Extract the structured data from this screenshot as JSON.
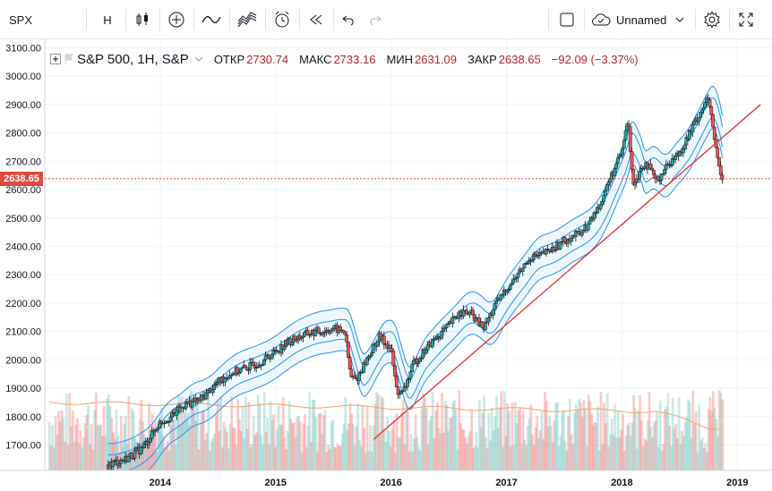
{
  "toolbar": {
    "symbol": "SPX",
    "interval": "H",
    "layout_name": "Unnamed",
    "icons": [
      "candles-icon",
      "add-indicator-icon",
      "indicators-icon",
      "compare-icon",
      "alert-icon",
      "replay-icon",
      "undo-icon",
      "redo-icon",
      "fullscreen-square-icon",
      "cloud-icon",
      "chevron-down-icon",
      "settings-gear-icon",
      "expand-icon"
    ]
  },
  "legend": {
    "title": "S&P 500, 1H, S&P",
    "open_label": "ОТКР",
    "open": "2730.74",
    "high_label": "МАКС",
    "high": "2733.16",
    "low_label": "МИН",
    "low": "2631.09",
    "close_label": "ЗАКР",
    "close": "2638.65",
    "change": "−92.09 (−3.37%)"
  },
  "last_price_tag": "2638.65",
  "colors": {
    "up": "#26a69a",
    "down": "#ef5350",
    "trend": "#e53935",
    "band": "#2196f3",
    "ma": "#f4a460",
    "price_line": "#e04a3f"
  },
  "chart_data": {
    "type": "candlestick",
    "y_axis_ticks": [
      "3100.00",
      "3000.00",
      "2900.00",
      "2800.00",
      "2700.00",
      "2600.00",
      "2500.00",
      "2400.00",
      "2300.00",
      "2200.00",
      "2100.00",
      "2000.00",
      "1900.00",
      "1800.00",
      "1700.00"
    ],
    "x_axis_ticks": [
      "2014",
      "2015",
      "2016",
      "2017",
      "2018",
      "2019"
    ],
    "ylim": [
      1610,
      3130
    ],
    "xlim": [
      2013.0,
      2019.3
    ],
    "close_path": [
      [
        2013.55,
        1630
      ],
      [
        2013.7,
        1650
      ],
      [
        2013.85,
        1690
      ],
      [
        2014.0,
        1780
      ],
      [
        2014.1,
        1800
      ],
      [
        2014.2,
        1840
      ],
      [
        2014.35,
        1860
      ],
      [
        2014.5,
        1920
      ],
      [
        2014.6,
        1950
      ],
      [
        2014.8,
        1980
      ],
      [
        2014.9,
        2000
      ],
      [
        2015.0,
        2030
      ],
      [
        2015.1,
        2060
      ],
      [
        2015.2,
        2080
      ],
      [
        2015.3,
        2095
      ],
      [
        2015.4,
        2100
      ],
      [
        2015.5,
        2110
      ],
      [
        2015.6,
        2100
      ],
      [
        2015.65,
        1940
      ],
      [
        2015.7,
        1930
      ],
      [
        2015.8,
        2010
      ],
      [
        2015.9,
        2080
      ],
      [
        2016.0,
        2040
      ],
      [
        2016.05,
        1890
      ],
      [
        2016.1,
        1880
      ],
      [
        2016.2,
        1990
      ],
      [
        2016.35,
        2060
      ],
      [
        2016.5,
        2120
      ],
      [
        2016.6,
        2170
      ],
      [
        2016.7,
        2160
      ],
      [
        2016.8,
        2110
      ],
      [
        2016.9,
        2190
      ],
      [
        2017.0,
        2250
      ],
      [
        2017.1,
        2300
      ],
      [
        2017.2,
        2360
      ],
      [
        2017.3,
        2370
      ],
      [
        2017.4,
        2390
      ],
      [
        2017.5,
        2420
      ],
      [
        2017.6,
        2440
      ],
      [
        2017.7,
        2470
      ],
      [
        2017.8,
        2540
      ],
      [
        2017.9,
        2640
      ],
      [
        2018.0,
        2730
      ],
      [
        2018.05,
        2850
      ],
      [
        2018.1,
        2620
      ],
      [
        2018.2,
        2700
      ],
      [
        2018.3,
        2630
      ],
      [
        2018.4,
        2690
      ],
      [
        2018.5,
        2730
      ],
      [
        2018.6,
        2810
      ],
      [
        2018.7,
        2890
      ],
      [
        2018.75,
        2920
      ],
      [
        2018.8,
        2780
      ],
      [
        2018.85,
        2660
      ],
      [
        2018.88,
        2640
      ]
    ],
    "trend_line": [
      [
        2015.85,
        1720
      ],
      [
        2019.2,
        2900
      ]
    ],
    "last_price": 2638.65
  }
}
